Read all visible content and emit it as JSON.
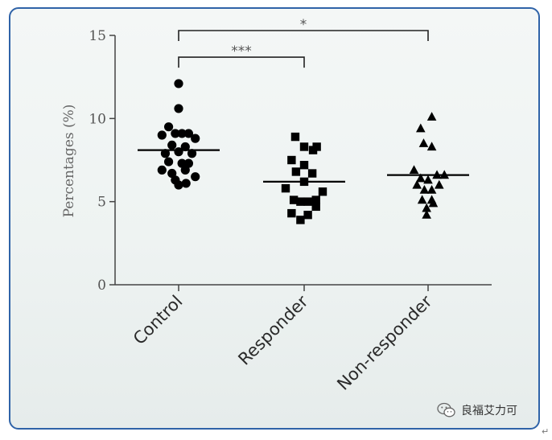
{
  "chart_data": {
    "type": "scatter",
    "ylabel": "Percentages (%)",
    "ylim": [
      0,
      15
    ],
    "yticks": [
      0,
      5,
      10,
      15
    ],
    "categories": [
      "Control",
      "Responder",
      "Non-responder"
    ],
    "series": [
      {
        "category": "Control",
        "marker": "circle",
        "mean": 8.1,
        "points": [
          {
            "offset": 0.0,
            "y": 12.1
          },
          {
            "offset": 0.0,
            "y": 10.6
          },
          {
            "offset": -0.27,
            "y": 9.5
          },
          {
            "offset": -0.45,
            "y": 9.0
          },
          {
            "offset": -0.09,
            "y": 9.1
          },
          {
            "offset": 0.09,
            "y": 9.1
          },
          {
            "offset": 0.27,
            "y": 9.1
          },
          {
            "offset": 0.45,
            "y": 8.8
          },
          {
            "offset": -0.18,
            "y": 8.4
          },
          {
            "offset": 0.18,
            "y": 8.3
          },
          {
            "offset": -0.36,
            "y": 7.9
          },
          {
            "offset": 0.0,
            "y": 8.0
          },
          {
            "offset": 0.36,
            "y": 7.9
          },
          {
            "offset": -0.27,
            "y": 7.4
          },
          {
            "offset": 0.09,
            "y": 7.3
          },
          {
            "offset": 0.27,
            "y": 7.3
          },
          {
            "offset": -0.45,
            "y": 6.9
          },
          {
            "offset": -0.18,
            "y": 6.7
          },
          {
            "offset": 0.18,
            "y": 6.9
          },
          {
            "offset": 0.45,
            "y": 6.5
          },
          {
            "offset": -0.09,
            "y": 6.3
          },
          {
            "offset": 0.0,
            "y": 6.0
          },
          {
            "offset": 0.2,
            "y": 6.1
          }
        ]
      },
      {
        "category": "Responder",
        "marker": "square",
        "mean": 6.2,
        "points": [
          {
            "offset": -0.24,
            "y": 8.9
          },
          {
            "offset": 0.0,
            "y": 8.3
          },
          {
            "offset": 0.24,
            "y": 8.1
          },
          {
            "offset": 0.34,
            "y": 8.3
          },
          {
            "offset": -0.34,
            "y": 7.5
          },
          {
            "offset": 0.0,
            "y": 7.2
          },
          {
            "offset": -0.22,
            "y": 6.8
          },
          {
            "offset": 0.22,
            "y": 6.7
          },
          {
            "offset": 0.0,
            "y": 6.2
          },
          {
            "offset": -0.5,
            "y": 5.8
          },
          {
            "offset": 0.5,
            "y": 5.6
          },
          {
            "offset": -0.28,
            "y": 5.1
          },
          {
            "offset": -0.1,
            "y": 5.0
          },
          {
            "offset": 0.1,
            "y": 5.0
          },
          {
            "offset": 0.32,
            "y": 5.1
          },
          {
            "offset": 0.32,
            "y": 4.7
          },
          {
            "offset": -0.34,
            "y": 4.3
          },
          {
            "offset": -0.1,
            "y": 3.9
          },
          {
            "offset": 0.1,
            "y": 4.2
          }
        ]
      },
      {
        "category": "Non-responder",
        "marker": "triangle",
        "mean": 6.6,
        "points": [
          {
            "offset": -0.2,
            "y": 9.4
          },
          {
            "offset": 0.1,
            "y": 10.1
          },
          {
            "offset": -0.12,
            "y": 8.5
          },
          {
            "offset": 0.1,
            "y": 8.3
          },
          {
            "offset": -0.38,
            "y": 6.9
          },
          {
            "offset": 0.24,
            "y": 6.6
          },
          {
            "offset": 0.44,
            "y": 6.6
          },
          {
            "offset": -0.2,
            "y": 6.4
          },
          {
            "offset": 0.0,
            "y": 6.3
          },
          {
            "offset": -0.3,
            "y": 6.0
          },
          {
            "offset": 0.3,
            "y": 6.0
          },
          {
            "offset": -0.1,
            "y": 5.7
          },
          {
            "offset": 0.1,
            "y": 5.7
          },
          {
            "offset": -0.16,
            "y": 5.1
          },
          {
            "offset": 0.1,
            "y": 5.1
          },
          {
            "offset": -0.04,
            "y": 4.6
          },
          {
            "offset": 0.14,
            "y": 4.9
          },
          {
            "offset": -0.04,
            "y": 4.2
          }
        ]
      }
    ],
    "significance": [
      {
        "from": "Control",
        "to": "Non-responder",
        "label": "*",
        "level": 15.0
      },
      {
        "from": "Control",
        "to": "Responder",
        "label": "***",
        "level": 13.4
      }
    ],
    "grid": false,
    "legend": "none"
  },
  "watermark": {
    "text": "良福艾力可",
    "icon": "wechat-icon"
  },
  "return_mark": "↵"
}
